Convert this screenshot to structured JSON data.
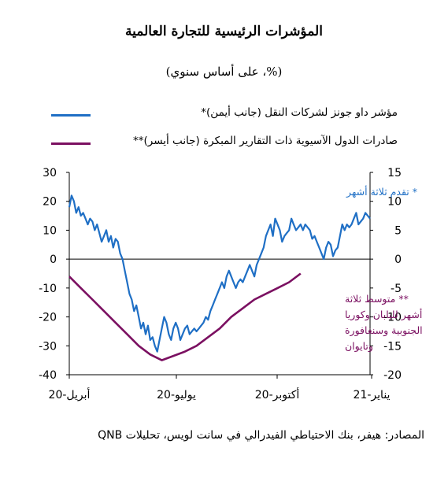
{
  "chart_data": {
    "type": "line",
    "title": "المؤشرات الرئيسية للتجارة العالمية",
    "subtitle": "(%، على أساس سنوي)",
    "x_ticks": [
      "أبريل-20",
      "يوليو-20",
      "أكتوبر-20",
      "يناير-21"
    ],
    "left_axis": {
      "ylim": [
        -40,
        30
      ],
      "ticks": [
        "30",
        "20",
        "10",
        "0",
        "-10",
        "-20",
        "-30",
        "-40"
      ]
    },
    "right_axis": {
      "ylim": [
        -20,
        15
      ],
      "ticks": [
        "15",
        "10",
        "5",
        "0",
        "-5",
        "-10",
        "-15",
        "-20"
      ]
    },
    "series": [
      {
        "name": "مؤشر داو جونز لشركات النقل (جانب أيمن)*",
        "axis": "right",
        "color": "#1f6fc5",
        "x": [
          0,
          1,
          2,
          3,
          4,
          5,
          6,
          7,
          8,
          9,
          10,
          11,
          12,
          13,
          14,
          15,
          16,
          17,
          18,
          19,
          20,
          21,
          22,
          23,
          24,
          25,
          26,
          27,
          28,
          29,
          30,
          31,
          32,
          33,
          34,
          35,
          36,
          37,
          38,
          39,
          40,
          41,
          42,
          43,
          44,
          45,
          46,
          47,
          48,
          49,
          50,
          51,
          52,
          53,
          54,
          55,
          56,
          57,
          58,
          59,
          60,
          61,
          62,
          63,
          64,
          65,
          66,
          67,
          68,
          69,
          70,
          71,
          72,
          73,
          74,
          75,
          76,
          77,
          78,
          79,
          80,
          81,
          82,
          83,
          84,
          85,
          86,
          87,
          88,
          89,
          90,
          91,
          92,
          93,
          94,
          95,
          96,
          97,
          98,
          99,
          100,
          101,
          102,
          103,
          104,
          105,
          106,
          107,
          108,
          109,
          110,
          111,
          112,
          113,
          114,
          115,
          116,
          117,
          118,
          119,
          120,
          121,
          122,
          123,
          124,
          125,
          126,
          127,
          128,
          129,
          130
        ],
        "values": [
          9,
          11,
          10,
          8,
          9,
          7.5,
          8,
          7,
          6,
          7,
          6.5,
          5,
          6,
          4.5,
          3,
          4,
          5,
          3,
          4,
          2,
          3.5,
          3,
          1,
          0,
          -2,
          -4,
          -6,
          -7,
          -9,
          -8,
          -10,
          -12,
          -11,
          -13,
          -11.5,
          -14,
          -13.5,
          -15,
          -16,
          -14,
          -12,
          -10,
          -11,
          -13,
          -14,
          -12,
          -11,
          -12,
          -14,
          -13,
          -12,
          -11.5,
          -13,
          -12.5,
          -12,
          -12.5,
          -12,
          -11.5,
          -11,
          -10,
          -10.5,
          -9,
          -8,
          -7,
          -6,
          -5,
          -4,
          -5,
          -3,
          -2,
          -3,
          -4,
          -5,
          -4,
          -3.5,
          -4,
          -3,
          -2,
          -1,
          -2,
          -3,
          -1,
          0,
          1,
          2,
          4,
          5,
          6,
          4,
          7,
          6,
          5,
          3,
          4,
          4.5,
          5,
          7,
          6,
          5,
          5.5,
          6,
          5,
          6,
          5.5,
          5,
          3.5,
          4,
          3,
          2,
          1,
          0,
          2,
          3,
          2.5,
          0.5,
          1.5,
          2,
          4,
          6,
          5,
          6,
          5.5,
          6,
          7,
          8,
          6,
          6.5,
          7,
          8,
          7.5,
          7
        ],
        "x_ticks_at": [
          0,
          40,
          82,
          122
        ]
      },
      {
        "name": "صادرات الدول الآسيوية ذات التقارير المبكرة (جانب أيسر)**",
        "axis": "left",
        "color": "#7b1061",
        "x": [
          0,
          5,
          10,
          15,
          20,
          25,
          30,
          35,
          40,
          45,
          50,
          55,
          60,
          65,
          70,
          75,
          80,
          85,
          90,
          95,
          100
        ],
        "values": [
          -6,
          -10,
          -14,
          -18,
          -22,
          -26,
          -30,
          -33,
          -35,
          -33.5,
          -32,
          -30,
          -27,
          -24,
          -20,
          -17,
          -14,
          -12,
          -10,
          -8,
          -5
        ]
      }
    ],
    "annotations": {
      "blue_note": "* تقدم ثلاثة أشهر",
      "purple_note": [
        "** متوسط ثلاثة",
        "أشهر لليابان وكوريا",
        "الجنوبية وسنغافورة",
        "وتايوان"
      ]
    },
    "source": "المصادر: هيفر، بنك الاحتياطي الفيدرالي في سانت لويس، تحليلات QNB",
    "grid": false
  }
}
